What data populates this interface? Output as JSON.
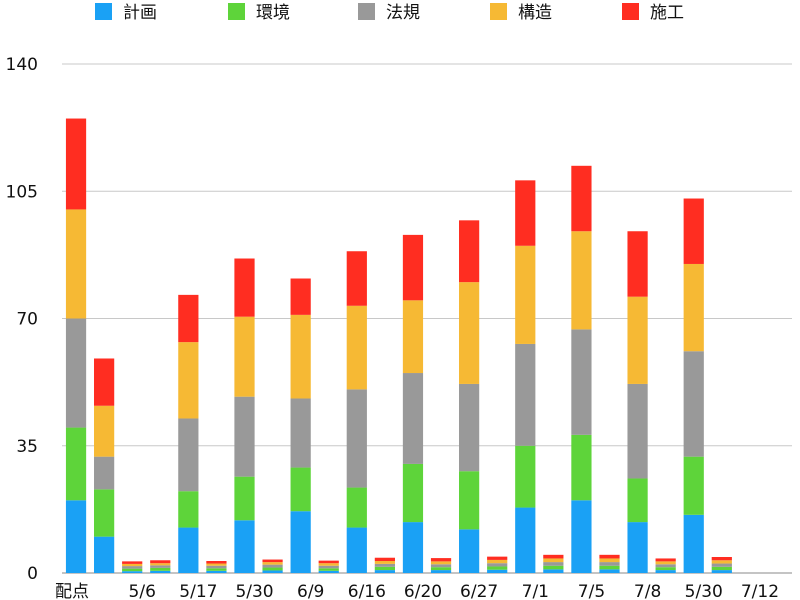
{
  "chart_data": {
    "type": "bar",
    "stacked": true,
    "categories": [
      "配点",
      "",
      "5/6",
      "",
      "5/17",
      "",
      "5/30",
      "",
      "6/9",
      "",
      "6/16",
      "",
      "6/20",
      "",
      "6/27",
      "",
      "7/1",
      "",
      "7/5",
      "",
      "7/8",
      "",
      "5/30",
      "",
      "7/12",
      ""
    ],
    "series": [
      {
        "name": "計画",
        "color": "#1aa1f5",
        "values": [
          20,
          10,
          0.5,
          0.6,
          12.5,
          0.6,
          14.5,
          0.7,
          17,
          0.6,
          12.5,
          0.8,
          14,
          0.8,
          12,
          0.9,
          18,
          1.0,
          20,
          1.0,
          14,
          0.8,
          16,
          0.8,
          0,
          0
        ]
      },
      {
        "name": "環境",
        "color": "#5ed43a",
        "values": [
          20,
          13,
          0.7,
          0.8,
          10,
          0.7,
          12,
          0.8,
          12,
          0.7,
          11,
          0.9,
          16,
          0.8,
          16,
          0.9,
          17,
          1.0,
          18,
          1.0,
          12,
          0.8,
          16,
          0.9,
          0,
          0
        ]
      },
      {
        "name": "法規",
        "color": "#999999",
        "values": [
          30,
          9,
          0.7,
          0.7,
          20,
          0.7,
          22,
          0.8,
          19,
          0.7,
          27,
          0.8,
          25,
          0.8,
          24,
          0.9,
          28,
          1.0,
          29,
          1.0,
          26,
          0.8,
          29,
          0.9,
          0,
          0
        ]
      },
      {
        "name": "構造",
        "color": "#f6b934",
        "values": [
          30,
          14,
          0.6,
          0.6,
          21,
          0.6,
          22,
          0.7,
          23,
          0.7,
          23,
          0.8,
          20,
          0.8,
          28,
          0.9,
          27,
          1.0,
          27,
          1.0,
          24,
          0.8,
          24,
          0.9,
          0,
          0
        ]
      },
      {
        "name": "施工",
        "color": "#ff2d21",
        "values": [
          25,
          13,
          0.7,
          0.8,
          13,
          0.7,
          16,
          0.7,
          10,
          0.7,
          15,
          0.9,
          18,
          0.9,
          17,
          0.9,
          18,
          1.0,
          18,
          1.0,
          18,
          0.8,
          18,
          0.9,
          0,
          0
        ]
      }
    ],
    "ylim": [
      0,
      140
    ],
    "yticks": [
      0,
      35,
      70,
      105,
      140
    ],
    "grid": true,
    "legend": "top"
  }
}
